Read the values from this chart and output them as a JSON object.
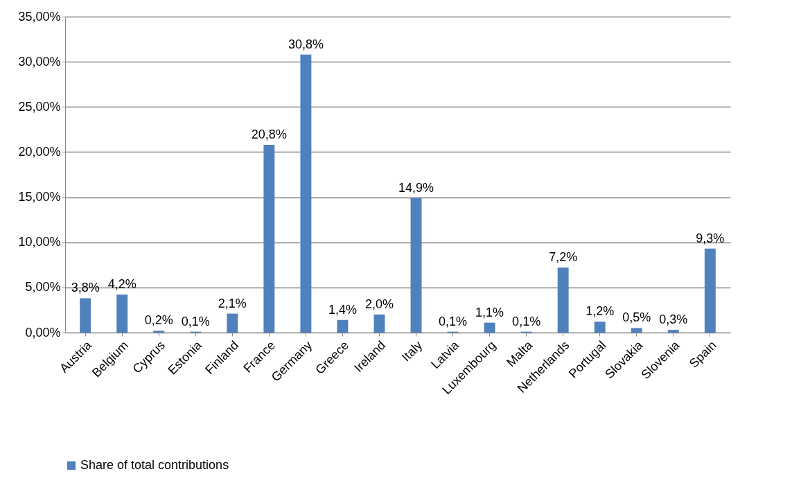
{
  "chart_data": {
    "type": "bar",
    "categories": [
      "Austria",
      "Belgium",
      "Cyprus",
      "Estonia",
      "Finland",
      "France",
      "Germany",
      "Greece",
      "Ireland",
      "Italy",
      "Latvia",
      "Luxembourg",
      "Malta",
      "Netherlands",
      "Portugal",
      "Slovakia",
      "Slovenia",
      "Spain"
    ],
    "series": [
      {
        "name": "Share of total contributions",
        "color": "#4f81bd",
        "values": [
          3.8,
          4.2,
          0.2,
          0.1,
          2.1,
          20.8,
          30.8,
          1.4,
          2.0,
          14.9,
          0.1,
          1.1,
          0.1,
          7.2,
          1.2,
          0.5,
          0.3,
          9.3
        ],
        "value_labels": [
          "3,8%",
          "4,2%",
          "0,2%",
          "0,1%",
          "2,1%",
          "20,8%",
          "30,8%",
          "1,4%",
          "2,0%",
          "14,9%",
          "0,1%",
          "1,1%",
          "0,1%",
          "7,2%",
          "1,2%",
          "0,5%",
          "0,3%",
          "9,3%"
        ]
      }
    ],
    "ylim": [
      0,
      35
    ],
    "yticks": [
      {
        "value": 0,
        "label": "0,00%"
      },
      {
        "value": 5,
        "label": "5,00%"
      },
      {
        "value": 10,
        "label": "10,00%"
      },
      {
        "value": 15,
        "label": "15,00%"
      },
      {
        "value": 20,
        "label": "20,00%"
      },
      {
        "value": 25,
        "label": "25,00%"
      },
      {
        "value": 30,
        "label": "30,00%"
      },
      {
        "value": 35,
        "label": "35,00%"
      }
    ],
    "grid": "y",
    "legend": "bottom"
  }
}
